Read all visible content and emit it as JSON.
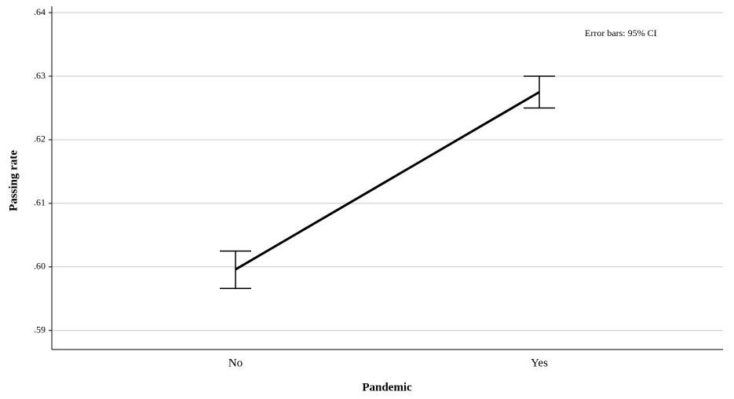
{
  "chart_data": {
    "type": "line",
    "x_label": "Pandemic",
    "y_label": "Passing rate",
    "annotation": "Error bars: 95% CI",
    "categories": [
      "No",
      "Yes"
    ],
    "series": [
      {
        "color": "#000000",
        "values": [
          0.5996,
          0.6275
        ],
        "lower": [
          0.5966,
          0.625
        ],
        "upper": [
          0.6025,
          0.63
        ]
      }
    ],
    "ylim": [
      0.587,
      0.641
    ],
    "yticks": [
      {
        "value": 0.59,
        "label": ".59"
      },
      {
        "value": 0.6,
        "label": ".60"
      },
      {
        "value": 0.61,
        "label": ".61"
      },
      {
        "value": 0.62,
        "label": ".62"
      },
      {
        "value": 0.63,
        "label": ".63"
      },
      {
        "value": 0.64,
        "label": ".64"
      }
    ],
    "grid": true
  }
}
